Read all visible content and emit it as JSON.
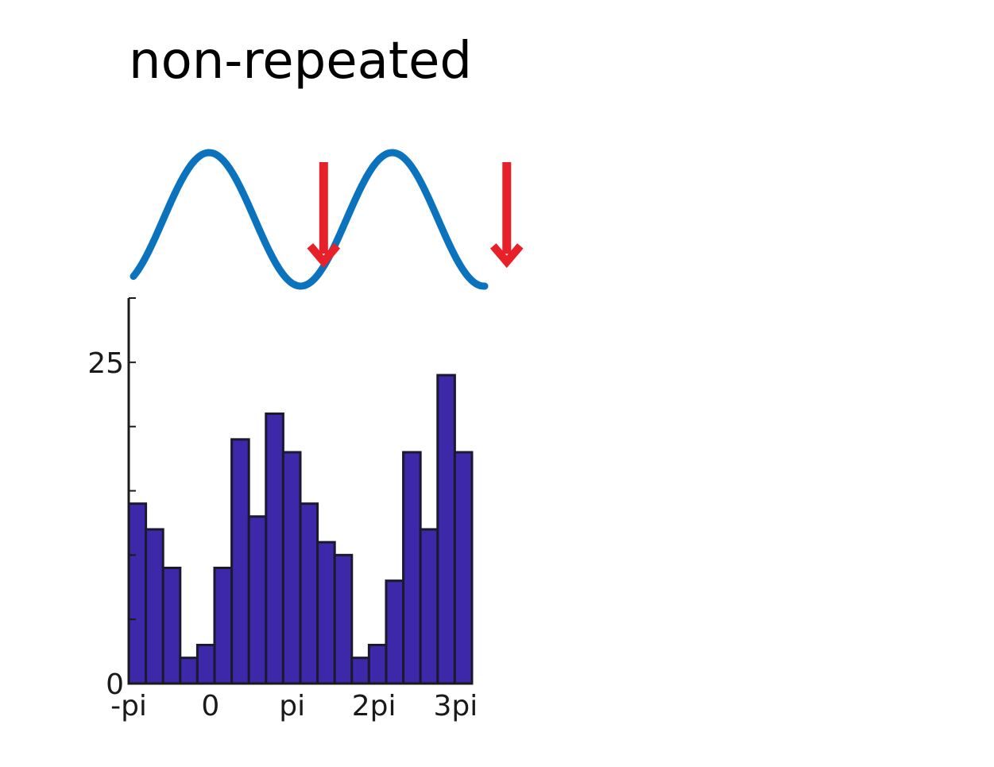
{
  "chart_data": {
    "type": "bar",
    "title": "non-repeated",
    "xlabel": "",
    "ylabel": "",
    "xlim": [
      -3.14159,
      10.0531
    ],
    "ylim": [
      0,
      30
    ],
    "bin_width": 0.6597,
    "y_ticks": [
      0,
      5,
      10,
      15,
      20,
      25,
      30
    ],
    "y_tick_labels": [
      {
        "value": 0,
        "label": "0"
      },
      {
        "value": 25,
        "label": "25"
      }
    ],
    "x_tick_labels": [
      {
        "value": -3.14159,
        "label": "-pi"
      },
      {
        "value": 0,
        "label": "0"
      },
      {
        "value": 3.14159,
        "label": "pi"
      },
      {
        "value": 6.28318,
        "label": "2pi"
      },
      {
        "value": 9.42478,
        "label": "3pi"
      }
    ],
    "values": [
      14,
      12,
      9,
      2,
      3,
      9,
      19,
      13,
      21,
      18,
      14,
      11,
      10,
      2,
      3,
      8,
      18,
      12,
      24,
      18
    ],
    "bar_fill": "#3c28a8",
    "bar_stroke": "#1a1a2e",
    "wave": {
      "color": "#0b72bd",
      "arrow_color": "#e8202a",
      "arrow_phases": [
        3.93,
        10.21
      ]
    }
  }
}
